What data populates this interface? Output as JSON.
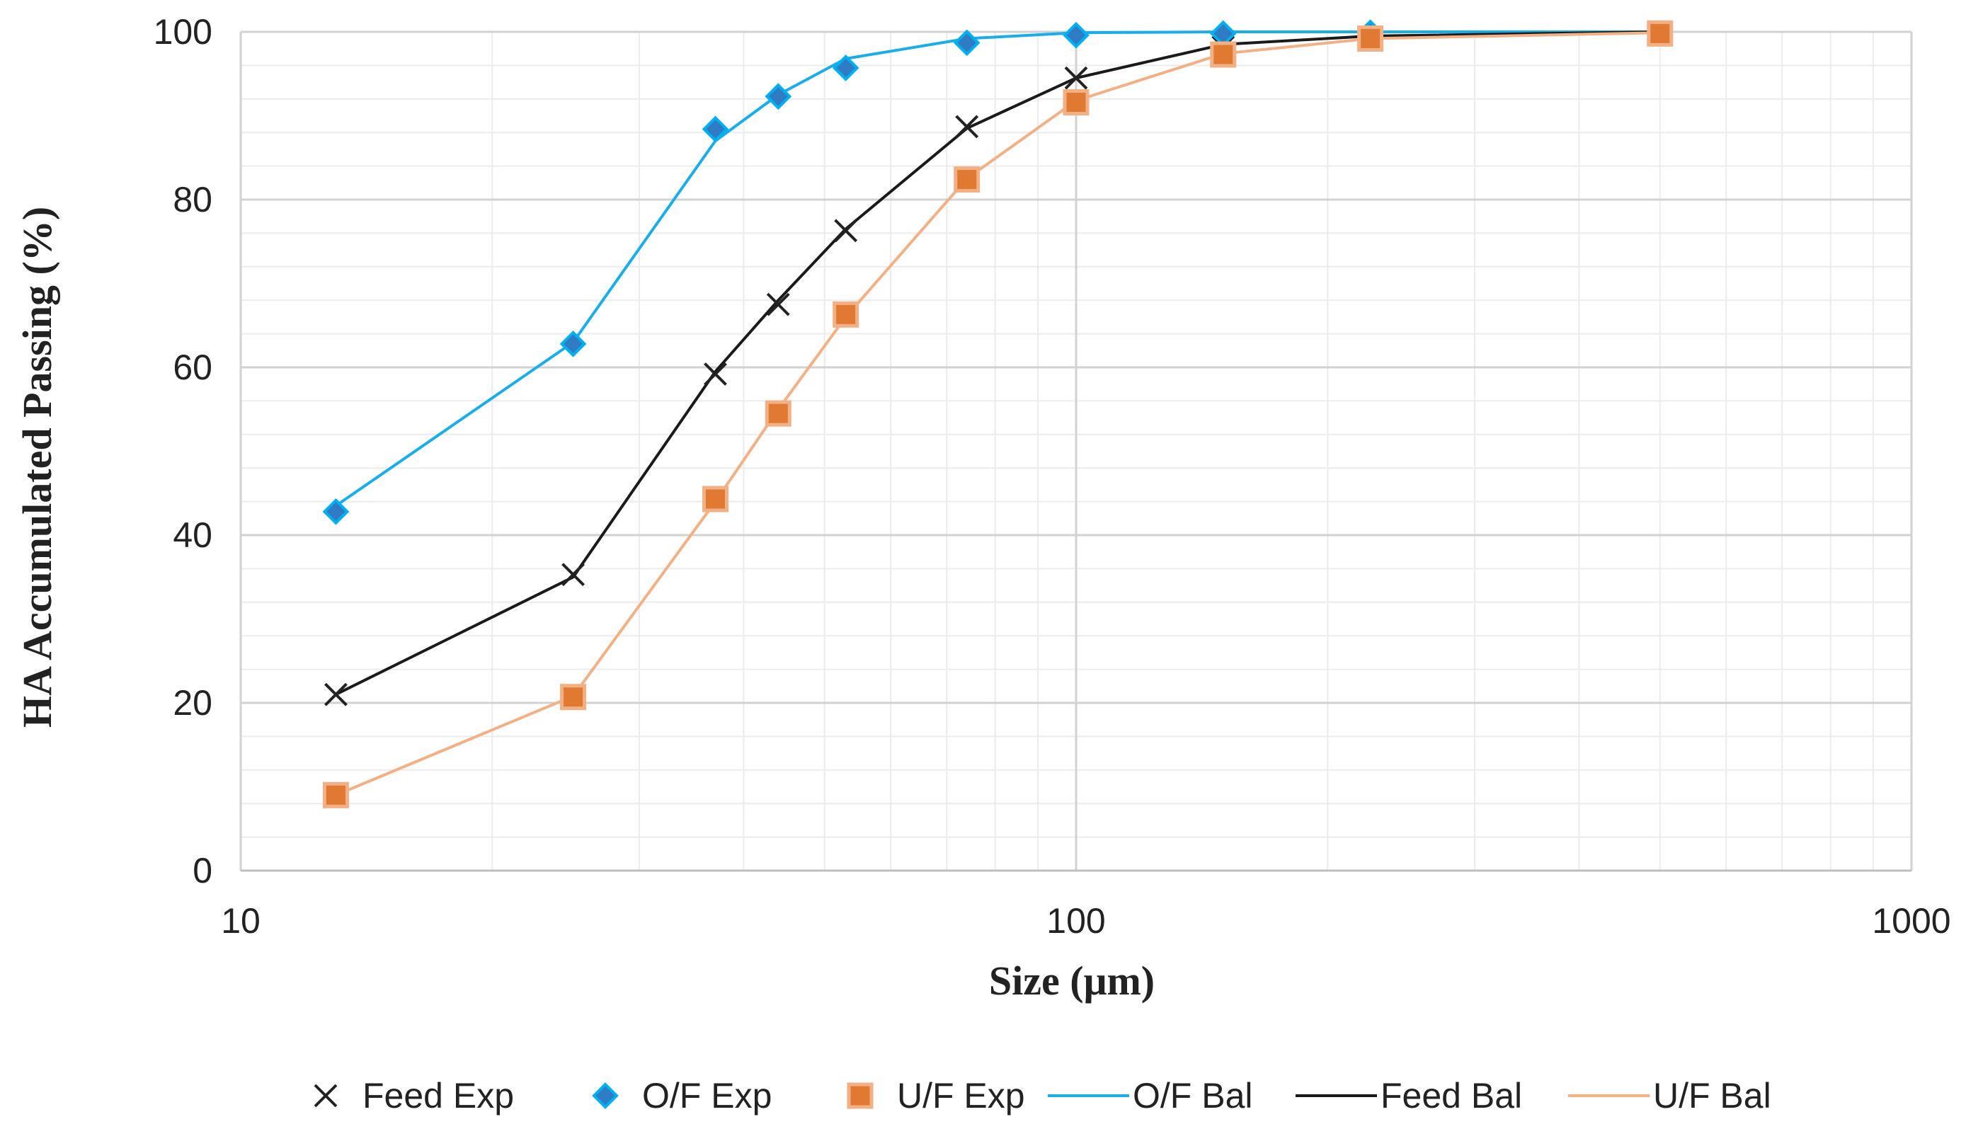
{
  "chart_data": {
    "type": "line",
    "title": "",
    "xlabel": "Size (μm)",
    "ylabel": "HA Accumulated Passing (%)",
    "xscale": "log",
    "xlim": [
      10,
      1000
    ],
    "ylim": [
      0,
      100
    ],
    "x_ticks": [
      10,
      100,
      1000
    ],
    "x_tick_labels": [
      "10",
      "100",
      "1000"
    ],
    "y_ticks": [
      0,
      20,
      40,
      60,
      80,
      100
    ],
    "y_tick_labels": [
      "0",
      "20",
      "40",
      "60",
      "80",
      "100"
    ],
    "grid": true,
    "legend_position": "bottom",
    "series": [
      {
        "name": "Feed Exp",
        "kind": "scatter",
        "marker": "x",
        "color": "#222222",
        "x": [
          13,
          25,
          37,
          44,
          53,
          74,
          100,
          150,
          225,
          500
        ],
        "y": [
          21,
          35.3,
          59.2,
          67.5,
          76.3,
          88.7,
          94.5,
          98.2,
          99.2,
          99.8
        ]
      },
      {
        "name": "O/F Exp",
        "kind": "scatter",
        "marker": "diamond",
        "color": "#2F7BC4",
        "edge_color": "#00B0F0",
        "x": [
          13,
          25,
          37,
          44,
          53,
          74,
          100,
          150,
          225
        ],
        "y": [
          42.8,
          62.8,
          88.4,
          92.3,
          95.7,
          98.7,
          99.6,
          99.8,
          99.9
        ]
      },
      {
        "name": "U/F Exp",
        "kind": "scatter",
        "marker": "square",
        "color": "#E07A33",
        "edge_color": "#F2B084",
        "x": [
          13,
          25,
          37,
          44,
          53,
          74,
          100,
          150,
          225,
          500
        ],
        "y": [
          9,
          20.7,
          44.3,
          54.5,
          66.3,
          82.4,
          91.6,
          97.3,
          99.2,
          99.8
        ]
      },
      {
        "name": "O/F Bal",
        "kind": "line",
        "color": "#18AEEA",
        "x": [
          13,
          25,
          37,
          44,
          53,
          74,
          100,
          150,
          225,
          500
        ],
        "y": [
          43.5,
          63,
          87,
          92.5,
          96.8,
          99.2,
          99.9,
          100,
          100,
          100
        ]
      },
      {
        "name": "Feed Bal",
        "kind": "line",
        "color": "#1A1A1A",
        "x": [
          13,
          25,
          37,
          44,
          53,
          74,
          100,
          150,
          225,
          500
        ],
        "y": [
          21,
          35,
          59.5,
          68,
          76.5,
          88.5,
          94.5,
          98.5,
          99.5,
          100
        ]
      },
      {
        "name": "U/F Bal",
        "kind": "line",
        "color": "#F2B084",
        "x": [
          13,
          25,
          37,
          44,
          53,
          74,
          100,
          150,
          225,
          500
        ],
        "y": [
          9,
          20.8,
          44,
          55,
          66,
          82.5,
          91.8,
          97.4,
          99.2,
          99.9
        ]
      }
    ],
    "legend": [
      "Feed Exp",
      "O/F Exp",
      "U/F Exp",
      "O/F Bal",
      "Feed Bal",
      "U/F Bal"
    ]
  }
}
